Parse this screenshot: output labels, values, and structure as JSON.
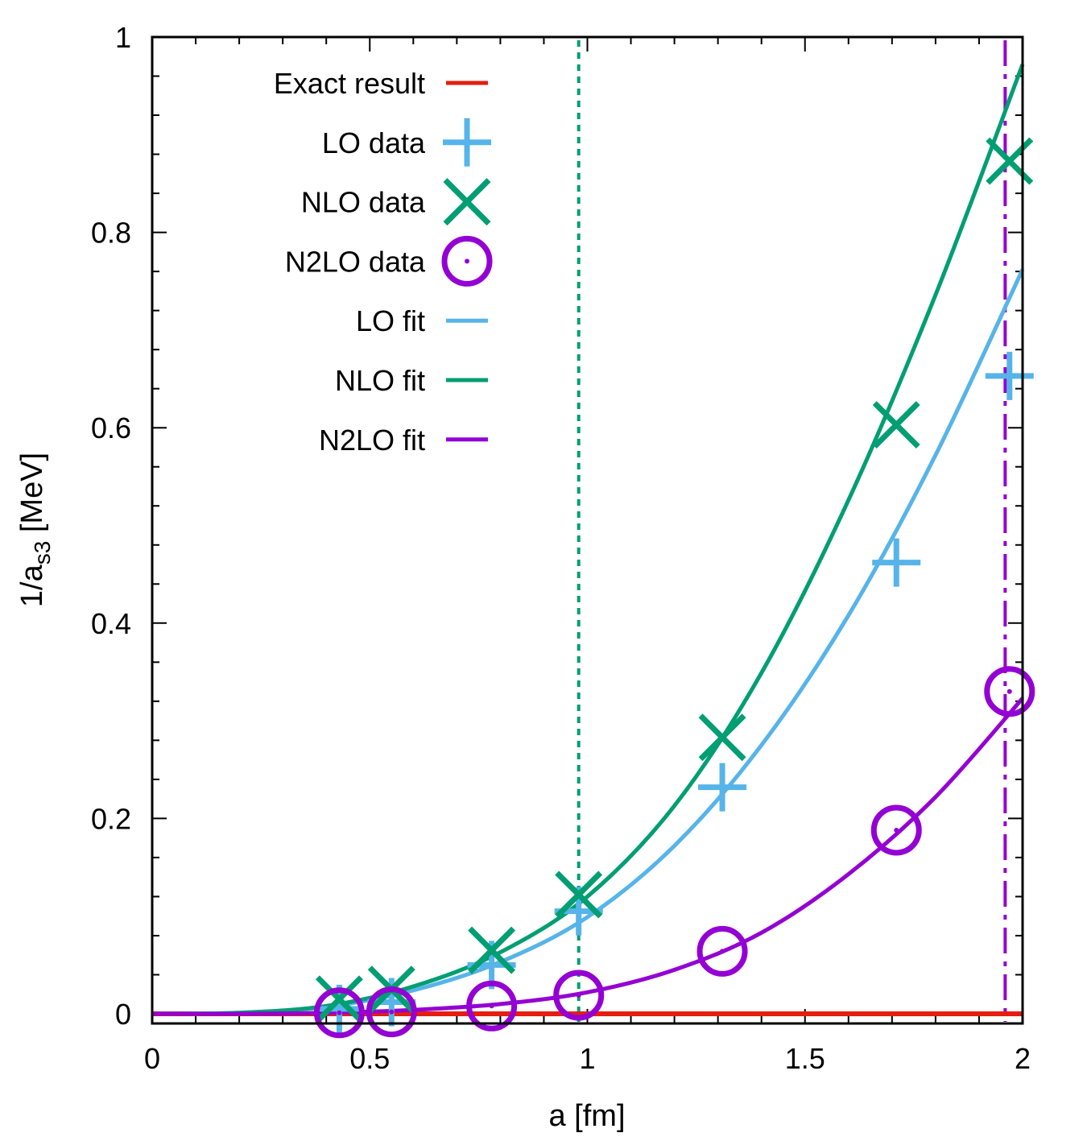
{
  "chart_data": {
    "type": "line",
    "xlabel": "a  [fm]",
    "ylabel": {
      "main": "1/a",
      "subscript": "s3",
      "unit": " [MeV]"
    },
    "xlim": [
      0,
      2
    ],
    "ylim": [
      0,
      1
    ],
    "x_ticks": [
      {
        "value": 0,
        "label": "0"
      },
      {
        "value": 0.5,
        "label": "0.5"
      },
      {
        "value": 1,
        "label": "1"
      },
      {
        "value": 1.5,
        "label": "1.5"
      },
      {
        "value": 2,
        "label": "2"
      }
    ],
    "y_ticks": [
      {
        "value": 0,
        "label": "0"
      },
      {
        "value": 0.2,
        "label": "0.2"
      },
      {
        "value": 0.4,
        "label": "0.4"
      },
      {
        "value": 0.6,
        "label": "0.6"
      },
      {
        "value": 0.8,
        "label": "0.8"
      },
      {
        "value": 1,
        "label": "1"
      }
    ],
    "x_minor_step": 0.1,
    "y_minor_step": 0.04,
    "colors": {
      "exact": "#e51e10",
      "lo": "#56b4e9",
      "nlo": "#009e73",
      "n2lo": "#9400d3"
    },
    "series": [
      {
        "name": "Exact result",
        "kind": "line",
        "color_key": "exact",
        "x": [
          0,
          2
        ],
        "y": [
          0,
          0
        ]
      },
      {
        "name": "LO data",
        "kind": "points",
        "marker": "plus",
        "color_key": "lo",
        "x": [
          0.43,
          0.55,
          0.78,
          0.98,
          1.31,
          1.71,
          1.97
        ],
        "y": [
          0.005,
          0.012,
          0.05,
          0.105,
          0.232,
          0.462,
          0.653
        ]
      },
      {
        "name": "NLO data",
        "kind": "points",
        "marker": "cross",
        "color_key": "nlo",
        "x": [
          0.43,
          0.55,
          0.78,
          0.98,
          1.31,
          1.71,
          1.97
        ],
        "y": [
          0.015,
          0.025,
          0.065,
          0.122,
          0.283,
          0.603,
          0.873
        ]
      },
      {
        "name": "N2LO data",
        "kind": "points",
        "marker": "circle",
        "color_key": "n2lo",
        "x": [
          0.43,
          0.55,
          0.78,
          0.98,
          1.31,
          1.71,
          1.97
        ],
        "y": [
          0.001,
          0.002,
          0.008,
          0.019,
          0.064,
          0.188,
          0.33
        ]
      },
      {
        "name": "LO fit",
        "kind": "curve",
        "color_key": "lo",
        "x": [
          0.0,
          0.2,
          0.4,
          0.6,
          0.8,
          1.0,
          1.2,
          1.4,
          1.6,
          1.8,
          2.0
        ],
        "y": [
          0.0,
          0.001,
          0.007,
          0.024,
          0.053,
          0.099,
          0.172,
          0.275,
          0.408,
          0.572,
          0.762
        ]
      },
      {
        "name": "NLO fit",
        "kind": "curve",
        "color_key": "nlo",
        "x": [
          0.0,
          0.2,
          0.4,
          0.6,
          0.8,
          1.0,
          1.2,
          1.4,
          1.6,
          1.8,
          2.0
        ],
        "y": [
          0.0,
          0.001,
          0.008,
          0.028,
          0.063,
          0.12,
          0.213,
          0.349,
          0.526,
          0.736,
          0.972
        ]
      },
      {
        "name": "N2LO fit",
        "kind": "curve",
        "color_key": "n2lo",
        "x": [
          0.0,
          0.2,
          0.4,
          0.6,
          0.8,
          1.0,
          1.2,
          1.4,
          1.6,
          1.8,
          2.0
        ],
        "y": [
          0.0,
          0.0,
          0.001,
          0.004,
          0.01,
          0.022,
          0.045,
          0.083,
          0.143,
          0.222,
          0.323
        ]
      }
    ],
    "vertical_lines": [
      {
        "x": 0.98,
        "style": "dotted",
        "color_key": "nlo"
      },
      {
        "x": 1.96,
        "style": "dashdot",
        "color_key": "n2lo"
      }
    ],
    "legend": {
      "position": "top-left",
      "entries": [
        {
          "label": "Exact result",
          "sample": "line",
          "color_key": "exact"
        },
        {
          "label": "LO data",
          "sample": "plus",
          "color_key": "lo"
        },
        {
          "label": "NLO data",
          "sample": "cross",
          "color_key": "nlo"
        },
        {
          "label": "N2LO data",
          "sample": "circle",
          "color_key": "n2lo"
        },
        {
          "label": "LO fit",
          "sample": "line",
          "color_key": "lo"
        },
        {
          "label": "NLO fit",
          "sample": "line",
          "color_key": "nlo"
        },
        {
          "label": "N2LO fit",
          "sample": "line",
          "color_key": "n2lo"
        }
      ]
    }
  }
}
